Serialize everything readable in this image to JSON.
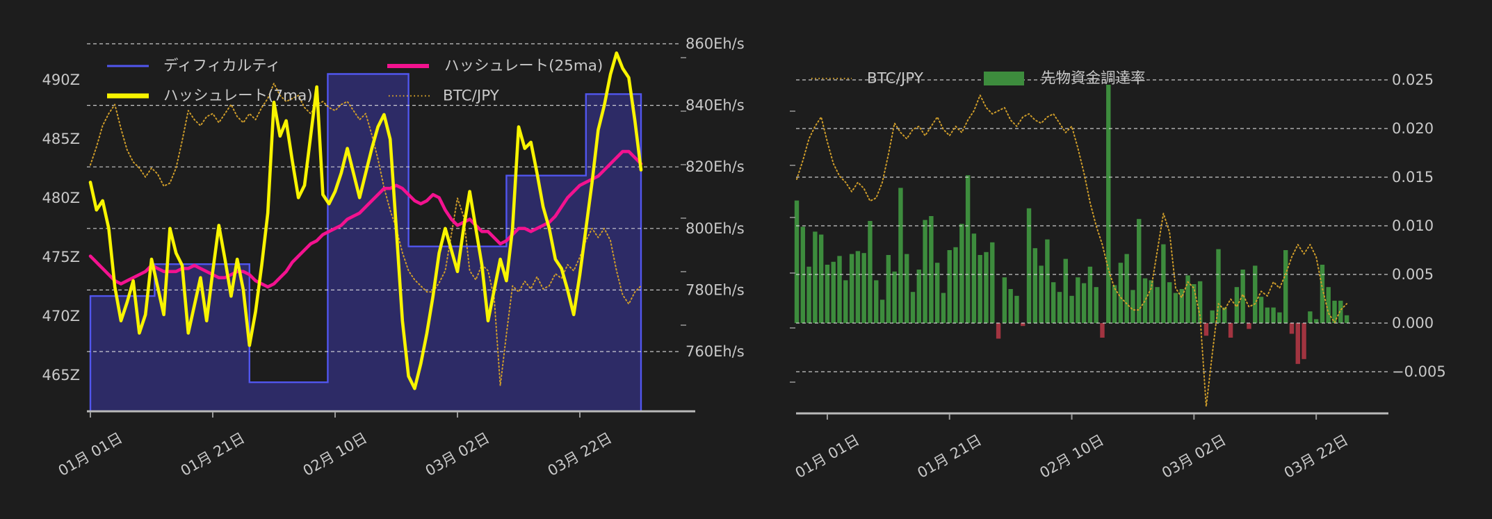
{
  "page": {
    "background": "#1d1d1d"
  },
  "colors": {
    "background": "#1d1d1d",
    "text": "#c9c9c9",
    "grid": "#e8e8e8",
    "axis_line": "#b9b9b9",
    "minor_tick": "#9a9a9a",
    "difficulty_line": "#5156ee",
    "difficulty_fill": "#2d2b66",
    "hashrate_7ma": "#f8f400",
    "hashrate_25ma": "#f3128f",
    "btc_jpy": "#cf9d2a",
    "funding_positive": "#3d8c3d",
    "funding_negative": "#a23440"
  },
  "chart_data": [
    {
      "type": "line",
      "title": "",
      "legend": [
        {
          "label": "ディフィカルティ",
          "color": "#5156ee",
          "style": "line"
        },
        {
          "label": "ハッシュレート(7ma)",
          "color": "#f8f400",
          "style": "line-thick"
        },
        {
          "label": "ハッシュレート(25ma)",
          "color": "#f3128f",
          "style": "line-thick"
        },
        {
          "label": "BTC/JPY",
          "color": "#cf9d2a",
          "style": "dotted"
        }
      ],
      "x_tick_labels": [
        "01月 01日",
        "01月 21日",
        "02月 10日",
        "03月 02日",
        "03月 22日"
      ],
      "x_tick_days": [
        0,
        20,
        40,
        60,
        80
      ],
      "y_left": {
        "tick_labels": [
          "490Z",
          "485Z",
          "480Z",
          "475Z",
          "470Z",
          "465Z"
        ],
        "tick_values": [
          490,
          485,
          480,
          475,
          470,
          465
        ],
        "series_unit": "Z (difficulty)"
      },
      "y_right": {
        "tick_labels": [
          "860Eh/s",
          "840Eh/s",
          "820Eh/s",
          "800Eh/s",
          "780Eh/s",
          "760Eh/s"
        ],
        "tick_values": [
          860,
          840,
          820,
          800,
          780,
          760
        ],
        "series_unit": "Eh/s"
      },
      "series": {
        "difficulty_steps_z": [
          {
            "start_day": 0,
            "end_day": 10.5,
            "value_z": 471.7
          },
          {
            "start_day": 10.5,
            "end_day": 26,
            "value_z": 474.4
          },
          {
            "start_day": 26,
            "end_day": 38.8,
            "value_z": 464.4
          },
          {
            "start_day": 38.8,
            "end_day": 52,
            "value_z": 490.5
          },
          {
            "start_day": 52,
            "end_day": 68,
            "value_z": 475.9
          },
          {
            "start_day": 68,
            "end_day": 81,
            "value_z": 481.9
          },
          {
            "start_day": 81,
            "end_day": 90,
            "value_z": 488.8
          }
        ],
        "hashrate_7ma_ehs": [
          815,
          806,
          809,
          800,
          781,
          770,
          776,
          783,
          766,
          772,
          790,
          781,
          772,
          800,
          792,
          788,
          766,
          775,
          784,
          770,
          786,
          801,
          790,
          778,
          790,
          780,
          762,
          773,
          788,
          805,
          841,
          830,
          835,
          822,
          810,
          814,
          830,
          846,
          811,
          808,
          812,
          818,
          826,
          818,
          810,
          818,
          826,
          833,
          837,
          829,
          800,
          770,
          752,
          748,
          756,
          766,
          778,
          792,
          800,
          793,
          786,
          800,
          812,
          800,
          788,
          770,
          780,
          790,
          783,
          800,
          833,
          826,
          828,
          818,
          807,
          800,
          790,
          787,
          780,
          772,
          785,
          800,
          815,
          832,
          840,
          850,
          857,
          852,
          849,
          835,
          819
        ],
        "hashrate_25ma_ehs": [
          791,
          789,
          787,
          785,
          783,
          782,
          783,
          784,
          785,
          786,
          788,
          787,
          786,
          786,
          786,
          787,
          787,
          788,
          787,
          786,
          785,
          784,
          784,
          785,
          786,
          786,
          785,
          783,
          782,
          781,
          782,
          784,
          786,
          789,
          791,
          793,
          795,
          796,
          798,
          799,
          800,
          801,
          803,
          804,
          805,
          807,
          809,
          811,
          813,
          813,
          814,
          813,
          811,
          809,
          808,
          809,
          811,
          810,
          806,
          803,
          801,
          802,
          803,
          801,
          799,
          799,
          797,
          795,
          796,
          798,
          800,
          800,
          799,
          800,
          801,
          802,
          804,
          807,
          810,
          812,
          814,
          815,
          816,
          817,
          819,
          821,
          823,
          825,
          825,
          823,
          821
        ],
        "btc_jpy_normalized": [
          0.73,
          0.79,
          0.86,
          0.9,
          0.93,
          0.85,
          0.78,
          0.74,
          0.72,
          0.69,
          0.72,
          0.7,
          0.66,
          0.67,
          0.72,
          0.81,
          0.91,
          0.88,
          0.86,
          0.89,
          0.9,
          0.87,
          0.9,
          0.93,
          0.89,
          0.87,
          0.9,
          0.88,
          0.92,
          0.95,
          1.0,
          0.96,
          0.94,
          0.95,
          0.96,
          0.92,
          0.9,
          0.93,
          0.94,
          0.92,
          0.91,
          0.93,
          0.94,
          0.91,
          0.88,
          0.9,
          0.83,
          0.75,
          0.655,
          0.58,
          0.52,
          0.44,
          0.38,
          0.35,
          0.33,
          0.31,
          0.31,
          0.34,
          0.38,
          0.5,
          0.62,
          0.56,
          0.38,
          0.35,
          0.4,
          0.38,
          0.29,
          0.0,
          0.17,
          0.33,
          0.31,
          0.345,
          0.32,
          0.36,
          0.32,
          0.33,
          0.37,
          0.355,
          0.4,
          0.38,
          0.425,
          0.48,
          0.52,
          0.49,
          0.52,
          0.48,
          0.38,
          0.3,
          0.27,
          0.31,
          0.33
        ]
      }
    },
    {
      "type": "bar",
      "title": "",
      "legend": [
        {
          "label": "BTC/JPY",
          "color": "#cf9d2a",
          "style": "dotted"
        },
        {
          "label": "先物資金調達率",
          "color": "#3d8c3d",
          "style": "patch"
        }
      ],
      "x_tick_labels": [
        "01月 01日",
        "01月 21日",
        "02月 10日",
        "03月 02日",
        "03月 22日"
      ],
      "x_tick_days": [
        5,
        25,
        45,
        65,
        85
      ],
      "y_right": {
        "tick_labels": [
          "0.025",
          "0.020",
          "0.015",
          "0.010",
          "0.005",
          "0.000",
          "−0.005"
        ],
        "tick_values": [
          0.025,
          0.02,
          0.015,
          0.01,
          0.005,
          0.0,
          -0.005
        ],
        "series_unit": "funding rate"
      },
      "series": {
        "funding_rate": [
          0.0126,
          0.0099,
          0.0058,
          0.0094,
          0.0091,
          0.006,
          0.0063,
          0.0069,
          0.0044,
          0.0071,
          0.0074,
          0.0072,
          0.0105,
          0.0044,
          0.0024,
          0.007,
          0.0053,
          0.0139,
          0.0071,
          0.0032,
          0.0055,
          0.0106,
          0.011,
          0.0062,
          0.0031,
          0.0075,
          0.0078,
          0.0102,
          0.0152,
          0.0092,
          0.007,
          0.0073,
          0.0083,
          -0.0016,
          0.0047,
          0.0035,
          0.0028,
          -0.0003,
          0.0118,
          0.0077,
          0.0059,
          0.0086,
          0.0042,
          0.0032,
          0.0066,
          0.0028,
          0.0047,
          0.0041,
          0.0058,
          0.0037,
          -0.0015,
          0.0245,
          0.0039,
          0.0062,
          0.0071,
          0.0034,
          0.0107,
          0.0046,
          0.0044,
          0.0037,
          0.0081,
          0.0042,
          0.0031,
          0.0035,
          0.0049,
          0.004,
          0.0043,
          -0.0013,
          0.0013,
          0.0076,
          0.0016,
          -0.0015,
          0.0037,
          0.0055,
          -0.0006,
          0.0059,
          0.0027,
          0.0016,
          0.0016,
          0.0011,
          0.0075,
          -0.0011,
          -0.0042,
          -0.0037,
          0.0012,
          0.0004,
          0.006,
          0.0037,
          0.0023,
          0.0023,
          0.0008
        ],
        "btc_jpy_note": "same BTC/JPY series as left chart (normalized values in chart_data[0].series.btc_jpy_normalized)"
      }
    }
  ]
}
